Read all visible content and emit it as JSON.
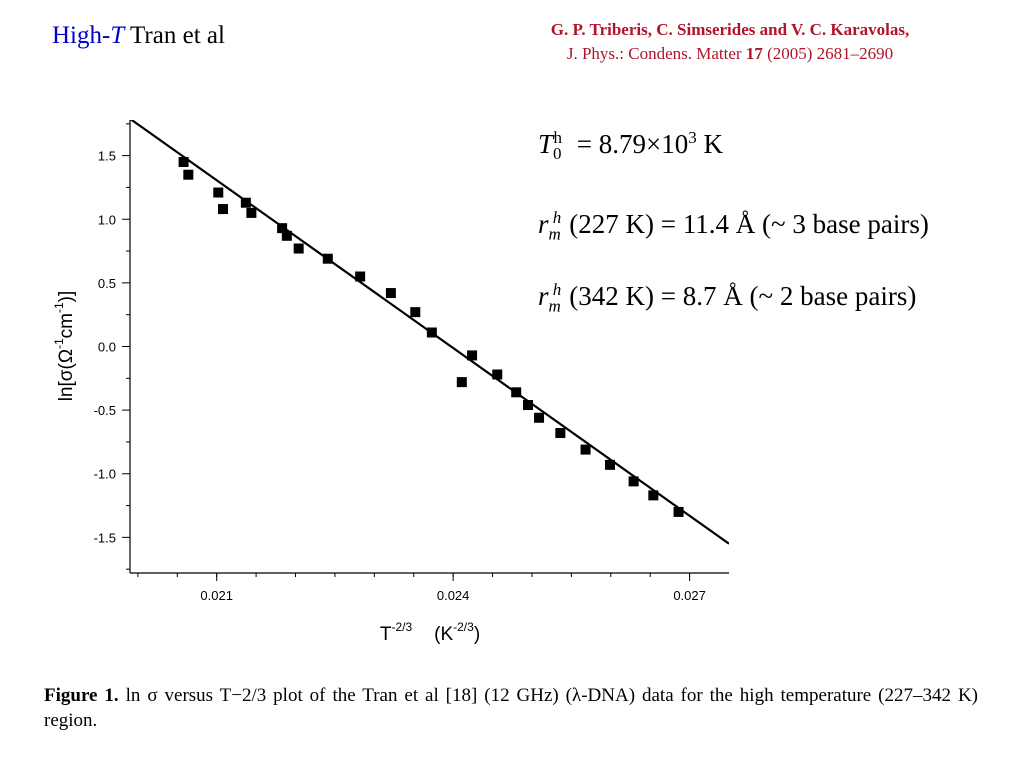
{
  "header": {
    "title_prefix": "High-",
    "title_italic": "T",
    "title_suffix": " Tran et al",
    "authors": "G. P. Triberis, C. Simserides and V. C. Karavolas,",
    "journal_prefix": "J. Phys.: Condens. Matter ",
    "journal_volume": "17",
    "journal_suffix": " (2005) 2681–2690"
  },
  "formulas": {
    "line1": {
      "lhs_var": "T",
      "lhs_sub": "0",
      "lhs_sup": "h",
      "rhs": " = 8.79×10",
      "rhs_sup": "3",
      "unit": " K"
    },
    "line2": {
      "var": "r",
      "sub": "m",
      "sup": "h",
      "arg": "(227 K) = 11.4 Å",
      "note": " (~ 3 base pairs)"
    },
    "line3": {
      "var": "r",
      "sub": "m",
      "sup": "h",
      "arg": "(342 K) = 8.7 Å",
      "note": " (~ 2 base pairs)"
    }
  },
  "caption": {
    "label": "Figure 1.",
    "text": "  ln σ versus T−2/3 plot of the Tran et al [18] (12 GHz) (λ-DNA) data for the high temperature (227–342 K) region."
  },
  "chart_data": {
    "type": "scatter",
    "xlabel": "T^-2/3 (K^-2/3)",
    "ylabel": "ln[σ(Ω-1cm-1)]",
    "xlim": [
      0.0199,
      0.0275
    ],
    "ylim": [
      -1.78,
      1.78
    ],
    "xticks": [
      0.021,
      0.024,
      0.027
    ],
    "yticks": [
      1.5,
      1.0,
      0.5,
      0.0,
      -0.5,
      -1.0,
      -1.5
    ],
    "xtick_labels": [
      "0.021",
      "0.024",
      "0.027"
    ],
    "ytick_labels": [
      "1.5",
      "1.0",
      "0.5",
      "0.0",
      "-0.5",
      "-1.0",
      "-1.5"
    ],
    "points": [
      [
        0.02058,
        1.45
      ],
      [
        0.02064,
        1.35
      ],
      [
        0.02102,
        1.21
      ],
      [
        0.02108,
        1.08
      ],
      [
        0.02137,
        1.13
      ],
      [
        0.02144,
        1.05
      ],
      [
        0.02183,
        0.93
      ],
      [
        0.02189,
        0.87
      ],
      [
        0.02204,
        0.77
      ],
      [
        0.02241,
        0.69
      ],
      [
        0.02282,
        0.55
      ],
      [
        0.02321,
        0.42
      ],
      [
        0.02352,
        0.27
      ],
      [
        0.02373,
        0.11
      ],
      [
        0.02411,
        -0.28
      ],
      [
        0.02424,
        -0.07
      ],
      [
        0.02456,
        -0.22
      ],
      [
        0.0248,
        -0.36
      ],
      [
        0.02495,
        -0.46
      ],
      [
        0.02509,
        -0.56
      ],
      [
        0.02536,
        -0.68
      ],
      [
        0.02568,
        -0.81
      ],
      [
        0.02599,
        -0.93
      ],
      [
        0.02629,
        -1.06
      ],
      [
        0.02654,
        -1.17
      ],
      [
        0.02686,
        -1.3
      ]
    ],
    "fit_line": {
      "x": [
        0.0199,
        0.0275
      ],
      "y": [
        1.79,
        -1.55
      ]
    }
  }
}
